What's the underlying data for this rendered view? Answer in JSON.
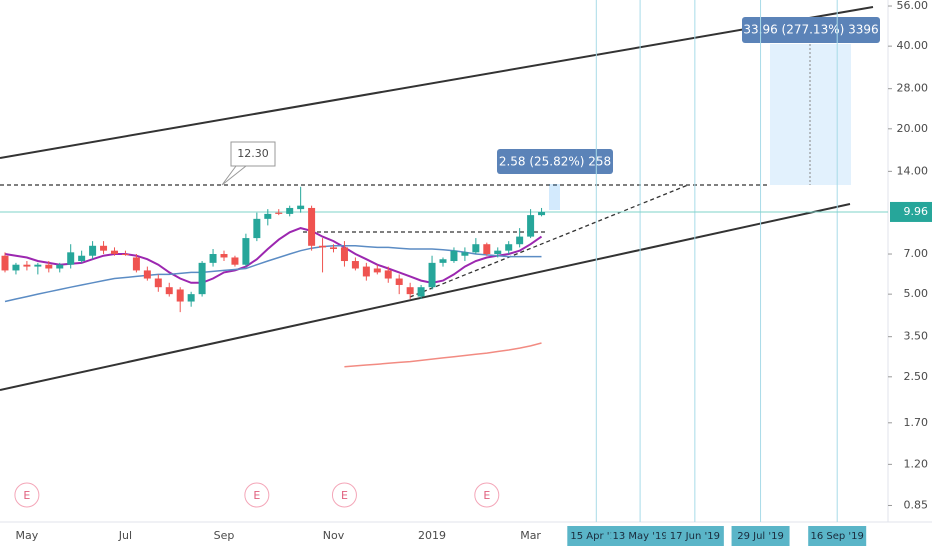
{
  "chart_data": {
    "type": "candlestick",
    "categories": [
      null,
      null,
      "May",
      null,
      null,
      null,
      null,
      null,
      null,
      null,
      null,
      "Jul",
      null,
      null,
      null,
      null,
      null,
      null,
      null,
      null,
      "Sep",
      null,
      null,
      null,
      null,
      null,
      null,
      null,
      null,
      null,
      "Nov",
      null,
      null,
      null,
      null,
      null,
      null,
      null,
      null,
      "2019",
      null,
      null,
      null,
      null,
      null,
      null,
      null,
      null,
      "Mar",
      null,
      null,
      null,
      null,
      null,
      "15 Apr '19",
      null,
      null,
      null,
      "13 May '19",
      null,
      null,
      null,
      null,
      "17 Jun '19",
      null,
      null,
      null,
      null,
      null,
      "29 Jul '19",
      null,
      null,
      null,
      null,
      null,
      null,
      "16 Sep '19",
      null,
      null,
      null
    ],
    "open": [
      6.9,
      6.1,
      6.4,
      6.3,
      6.4,
      6.2,
      6.4,
      6.6,
      6.9,
      7.5,
      7.2,
      7.0,
      6.8,
      6.1,
      5.7,
      5.3,
      5.2,
      4.7,
      5.0,
      6.5,
      7.0,
      6.8,
      6.4,
      8.0,
      9.4,
      9.9,
      9.8,
      10.2,
      10.3,
      7.5,
      7.4,
      7.4,
      6.6,
      6.3,
      6.2,
      6.1,
      5.7,
      5.3,
      4.9,
      5.3,
      6.5,
      6.6,
      6.9,
      7.1,
      7.6,
      7.0,
      7.2,
      7.6,
      8.1,
      9.7,
      null,
      null,
      null,
      null,
      null,
      null,
      null,
      null,
      null,
      null,
      null,
      null,
      null,
      null,
      null,
      null,
      null,
      null,
      null,
      null,
      null,
      null,
      null,
      null,
      null,
      null,
      null,
      null,
      null,
      null
    ],
    "high": [
      7.1,
      6.5,
      6.6,
      6.5,
      6.6,
      6.5,
      7.6,
      7.2,
      7.8,
      7.8,
      7.4,
      7.2,
      7.0,
      6.3,
      5.9,
      5.5,
      5.3,
      5.1,
      6.6,
      7.3,
      7.2,
      6.9,
      8.3,
      9.9,
      10.2,
      10.2,
      10.5,
      12.3,
      10.5,
      8.0,
      7.6,
      7.8,
      6.8,
      6.5,
      6.4,
      6.3,
      5.9,
      5.5,
      5.4,
      6.9,
      6.8,
      7.4,
      7.4,
      8.0,
      7.7,
      7.4,
      7.8,
      8.7,
      10.2,
      10.3,
      null,
      null,
      null,
      null,
      null,
      null,
      null,
      null,
      null,
      null,
      null,
      null,
      null,
      null,
      null,
      null,
      null,
      null,
      null,
      null,
      null,
      null,
      null,
      null,
      null,
      null,
      null,
      null,
      null,
      null
    ],
    "low": [
      6.0,
      5.9,
      6.1,
      5.9,
      6.0,
      6.0,
      6.2,
      6.5,
      6.7,
      7.0,
      6.9,
      6.9,
      6.0,
      5.6,
      5.1,
      4.9,
      4.3,
      4.5,
      4.9,
      6.3,
      6.6,
      6.3,
      6.3,
      7.8,
      8.9,
      9.7,
      9.6,
      9.9,
      7.2,
      6.0,
      7.1,
      6.3,
      6.1,
      5.6,
      5.9,
      5.5,
      5.0,
      4.8,
      4.8,
      5.2,
      6.3,
      6.5,
      6.6,
      7.0,
      6.9,
      6.8,
      7.0,
      7.4,
      8.0,
      9.6,
      null,
      null,
      null,
      null,
      null,
      null,
      null,
      null,
      null,
      null,
      null,
      null,
      null,
      null,
      null,
      null,
      null,
      null,
      null,
      null,
      null,
      null,
      null,
      null,
      null,
      null,
      null,
      null,
      null,
      null
    ],
    "close": [
      6.1,
      6.4,
      6.3,
      6.4,
      6.2,
      6.4,
      7.1,
      6.9,
      7.5,
      7.2,
      7.0,
      6.95,
      6.1,
      5.7,
      5.3,
      5.0,
      4.7,
      5.0,
      6.5,
      7.0,
      6.8,
      6.4,
      8.0,
      9.4,
      9.8,
      9.8,
      10.3,
      10.5,
      7.5,
      7.4,
      7.3,
      6.6,
      6.2,
      5.8,
      6.0,
      5.7,
      5.4,
      5.0,
      5.3,
      6.5,
      6.7,
      7.2,
      7.1,
      7.6,
      7.0,
      7.2,
      7.6,
      8.1,
      9.7,
      9.96,
      null,
      null,
      null,
      null,
      null,
      null,
      null,
      null,
      null,
      null,
      null,
      null,
      null,
      null,
      null,
      null,
      null,
      null,
      null,
      null,
      null,
      null,
      null,
      null,
      null,
      null,
      null,
      null,
      null,
      null
    ],
    "up_color": "#26a69a",
    "down_color": "#ef5350",
    "series": [
      {
        "color": "#9c27b0",
        "values": [
          7.0,
          6.9,
          6.8,
          6.6,
          6.5,
          6.4,
          6.45,
          6.5,
          6.7,
          6.9,
          7.0,
          7.0,
          6.9,
          6.7,
          6.4,
          6.0,
          5.7,
          5.5,
          5.5,
          5.7,
          6.0,
          6.1,
          6.3,
          6.7,
          7.3,
          7.9,
          8.4,
          8.7,
          8.5,
          8.1,
          7.8,
          7.4,
          7.0,
          6.7,
          6.4,
          6.2,
          6.0,
          5.8,
          5.6,
          5.5,
          5.6,
          5.9,
          6.3,
          6.6,
          6.8,
          6.9,
          7.0,
          7.2,
          7.6,
          8.1,
          null,
          null,
          null,
          null,
          null,
          null,
          null,
          null,
          null,
          null,
          null,
          null,
          null,
          null,
          null,
          null,
          null,
          null,
          null,
          null,
          null,
          null,
          null,
          null,
          null,
          null,
          null,
          null,
          null,
          null
        ]
      },
      {
        "color": "#5b8cc4",
        "values": [
          4.7,
          4.8,
          4.9,
          5.0,
          5.1,
          5.2,
          5.3,
          5.4,
          5.5,
          5.6,
          5.7,
          5.75,
          5.8,
          5.85,
          5.9,
          5.9,
          5.95,
          6.0,
          6.0,
          6.05,
          6.1,
          6.15,
          6.2,
          6.4,
          6.6,
          6.8,
          7.0,
          7.2,
          7.35,
          7.45,
          7.5,
          7.5,
          7.5,
          7.45,
          7.4,
          7.4,
          7.35,
          7.3,
          7.3,
          7.3,
          7.25,
          7.2,
          7.1,
          7.0,
          6.95,
          6.9,
          6.85,
          6.85,
          6.85,
          6.85,
          null,
          null,
          null,
          null,
          null,
          null,
          null,
          null,
          null,
          null,
          null,
          null,
          null,
          null,
          null,
          null,
          null,
          null,
          null,
          null,
          null,
          null,
          null,
          null,
          null,
          null,
          null,
          null,
          null,
          null
        ]
      },
      {
        "color": "#f28b82",
        "values": [
          null,
          null,
          null,
          null,
          null,
          null,
          null,
          null,
          null,
          null,
          null,
          null,
          null,
          null,
          null,
          null,
          null,
          null,
          null,
          null,
          null,
          null,
          null,
          null,
          null,
          null,
          null,
          null,
          null,
          null,
          null,
          2.72,
          2.74,
          2.76,
          2.78,
          2.8,
          2.82,
          2.84,
          2.87,
          2.9,
          2.93,
          2.96,
          2.99,
          3.02,
          3.05,
          3.09,
          3.13,
          3.18,
          3.24,
          3.32,
          null,
          null,
          null,
          null,
          null,
          null,
          null,
          null,
          null,
          null,
          null,
          null,
          null,
          null,
          null,
          null,
          null,
          null,
          null,
          null,
          null,
          null,
          null,
          null,
          null,
          null,
          null,
          null,
          null,
          null
        ]
      }
    ],
    "ylim": [
      0.74,
      58.9
    ],
    "yticks": [
      {
        "value": 56,
        "label": "56.00"
      },
      {
        "value": 40,
        "label": "40.00"
      },
      {
        "value": 28,
        "label": "28.00"
      },
      {
        "value": 20,
        "label": "20.00"
      },
      {
        "value": 14,
        "label": "14.00"
      },
      {
        "value": 7,
        "label": "7.00"
      },
      {
        "value": 5,
        "label": "5.00"
      },
      {
        "value": 3.5,
        "label": "3.50"
      },
      {
        "value": 2.5,
        "label": "2.50"
      },
      {
        "value": 1.7,
        "label": "1.70"
      },
      {
        "value": 1.2,
        "label": "1.20"
      },
      {
        "value": 0.85,
        "label": "0.85"
      }
    ],
    "log_scale": true,
    "grid": false,
    "last_price": 9.96,
    "annotations": [
      "12.30",
      "2.58 (25.82%) 258",
      "33.96 (277.13%) 3396"
    ],
    "earnings": [
      {
        "index": 2,
        "label": "E"
      },
      {
        "index": 23,
        "label": "E"
      },
      {
        "index": 31,
        "label": "E"
      },
      {
        "index": 44,
        "label": "E"
      }
    ]
  }
}
